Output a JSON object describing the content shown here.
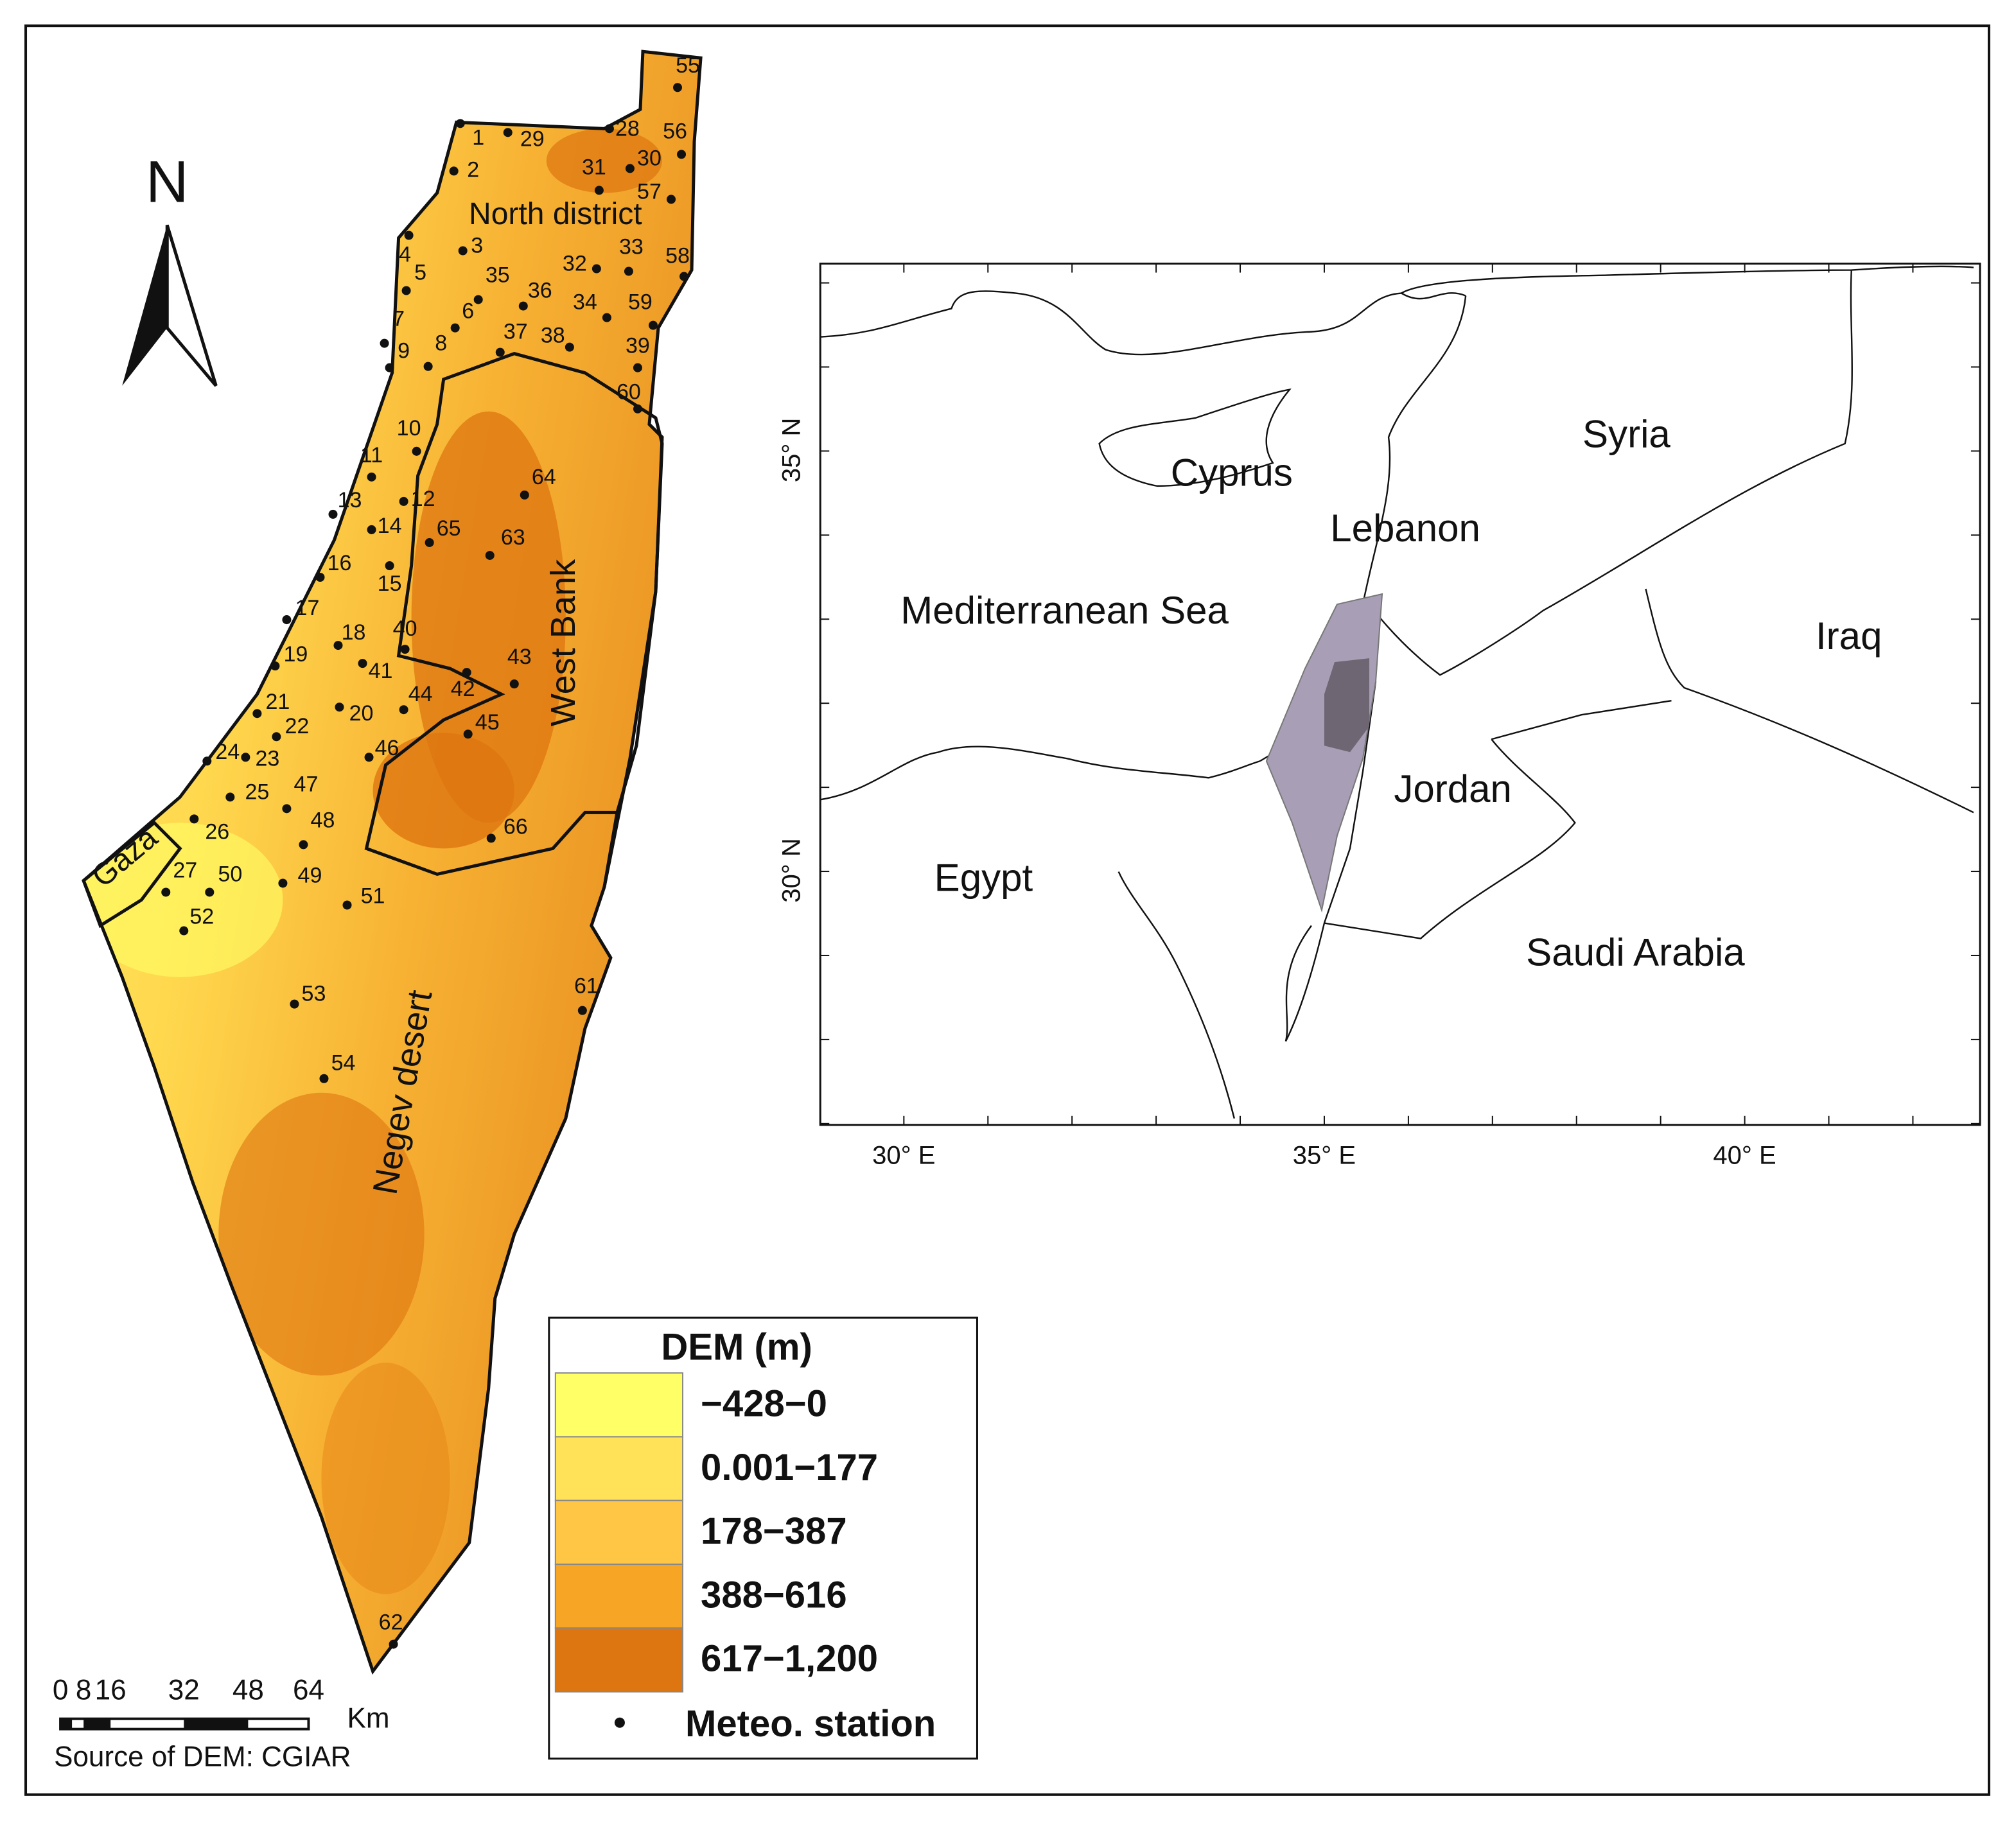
{
  "north_arrow": "N",
  "regions": {
    "north": "North district",
    "west_bank": "West Bank",
    "gaza": "Gaza",
    "negev": "Negev desert"
  },
  "stations": [
    1,
    2,
    3,
    4,
    5,
    6,
    7,
    8,
    9,
    10,
    11,
    12,
    13,
    14,
    15,
    16,
    17,
    18,
    19,
    20,
    21,
    22,
    23,
    24,
    25,
    26,
    27,
    28,
    29,
    30,
    31,
    32,
    33,
    34,
    35,
    36,
    37,
    38,
    39,
    40,
    41,
    42,
    43,
    44,
    45,
    46,
    47,
    48,
    49,
    50,
    51,
    52,
    53,
    54,
    55,
    56,
    57,
    58,
    59,
    60,
    61,
    62,
    63,
    64,
    65,
    66
  ],
  "legend": {
    "title": "DEM (m)",
    "classes": [
      {
        "label": "−428−0",
        "color": "#ffff66"
      },
      {
        "label": "0.001−177",
        "color": "#ffe257"
      },
      {
        "label": "178−387",
        "color": "#ffc544"
      },
      {
        "label": "388−616",
        "color": "#f6a524"
      },
      {
        "label": "617−1,200",
        "color": "#dd7510"
      }
    ],
    "station": "Meteo. station"
  },
  "scale_bar": {
    "ticks": [
      "0",
      "8",
      "16",
      "32",
      "48",
      "64"
    ],
    "unit": "Km"
  },
  "source": "Source of DEM: CGIAR",
  "inset": {
    "countries": [
      "Syria",
      "Cyprus",
      "Lebanon",
      "Mediterranean Sea",
      "Iraq",
      "Jordan",
      "Egypt",
      "Saudi Arabia"
    ],
    "lat_labels": [
      "35° N",
      "30° N"
    ],
    "lon_labels": [
      "30° E",
      "35° E",
      "40° E"
    ]
  }
}
